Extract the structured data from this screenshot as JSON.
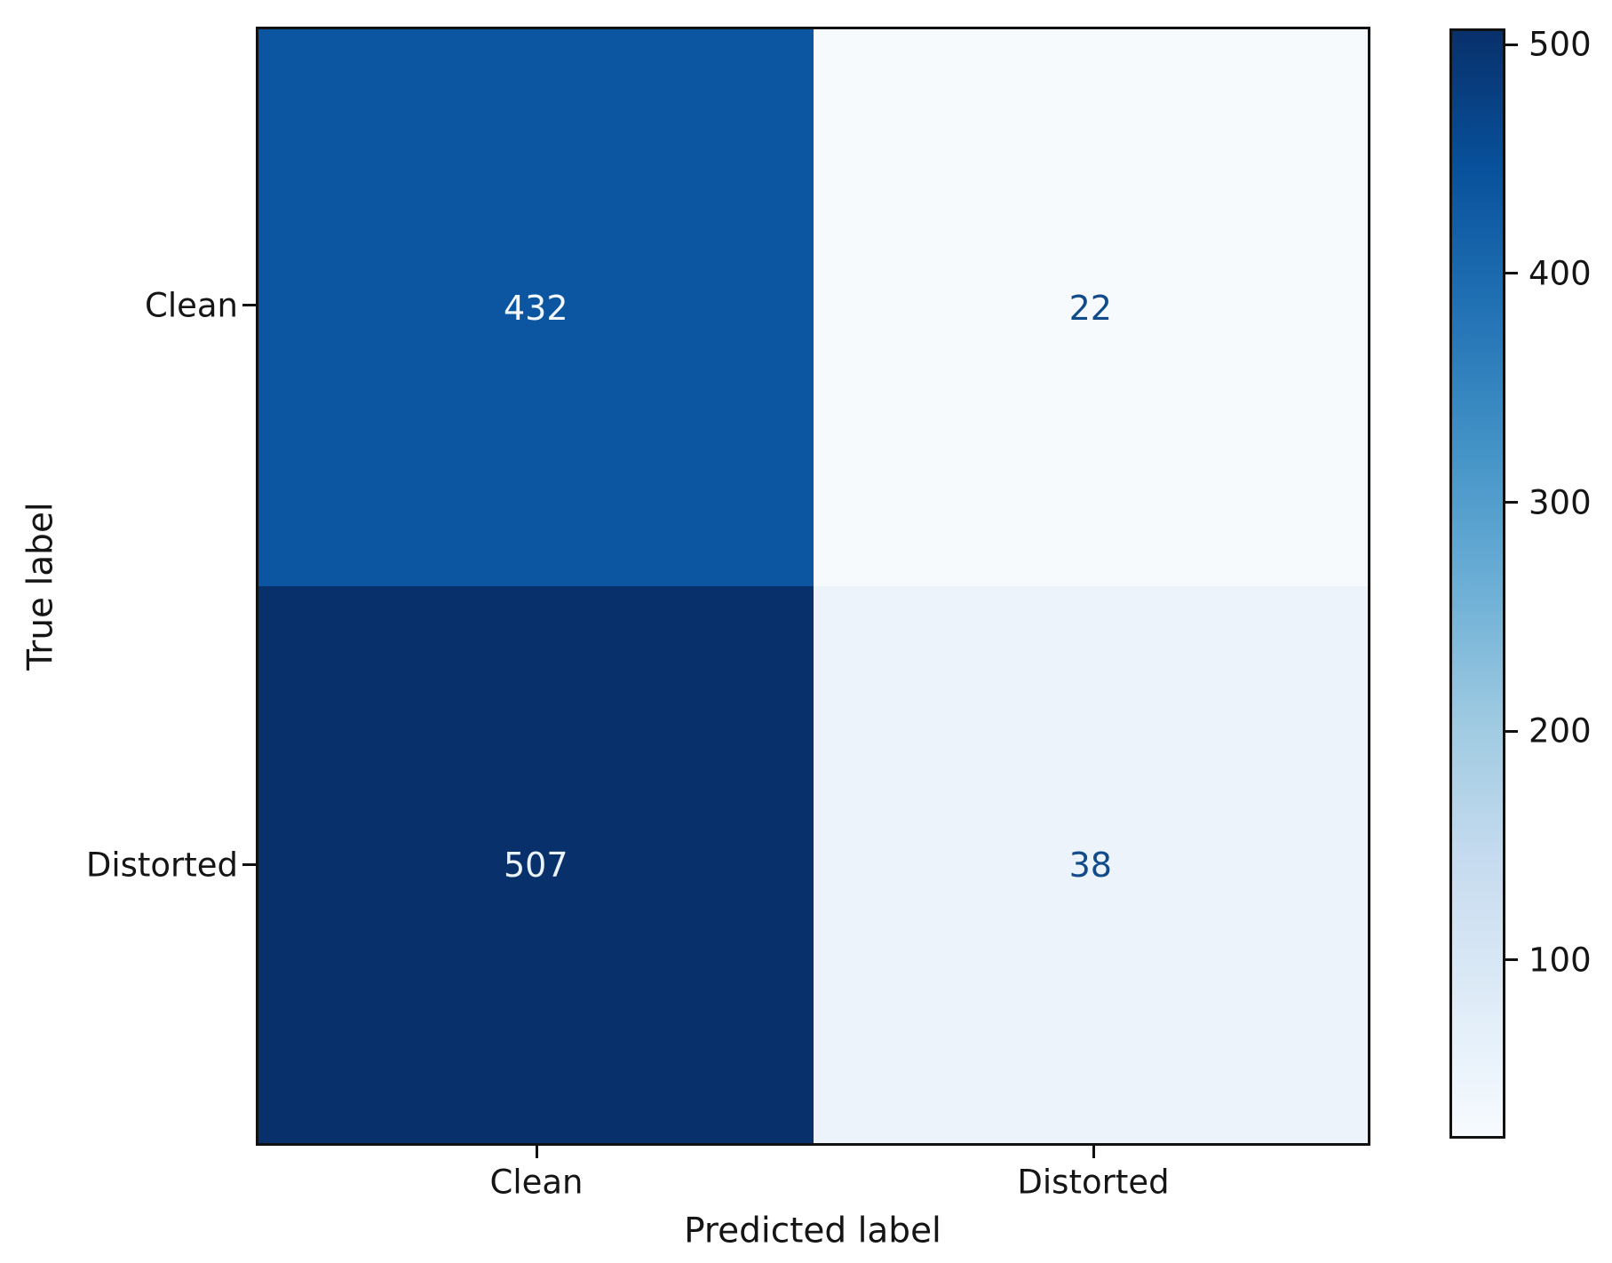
{
  "chart_data": {
    "type": "heatmap",
    "subtype": "confusion-matrix",
    "title": "",
    "xlabel": "Predicted label",
    "ylabel": "True label",
    "x_categories": [
      "Clean",
      "Distorted"
    ],
    "y_categories": [
      "Clean",
      "Distorted"
    ],
    "matrix": [
      [
        432,
        22
      ],
      [
        507,
        38
      ]
    ],
    "cells": [
      {
        "true_label": "Clean",
        "predicted_label": "Clean",
        "value": "432",
        "bg": "#0b55a1",
        "fg": "#f2f8fd"
      },
      {
        "true_label": "Clean",
        "predicted_label": "Distorted",
        "value": "22",
        "bg": "#f6fafd",
        "fg": "#124b89"
      },
      {
        "true_label": "Distorted",
        "predicted_label": "Clean",
        "value": "507",
        "bg": "#08306b",
        "fg": "#eaf2fa"
      },
      {
        "true_label": "Distorted",
        "predicted_label": "Distorted",
        "value": "38",
        "bg": "#ecf3fa",
        "fg": "#124b89"
      }
    ],
    "colorbar": {
      "vmin": 22,
      "vmax": 507,
      "ticks": [
        "500",
        "400",
        "300",
        "200",
        "100"
      ],
      "tick_values": [
        500,
        400,
        300,
        200,
        100
      ],
      "colormap": "Blues",
      "gradient_stops": [
        "#08306b",
        "#08519c",
        "#2171b5",
        "#4292c6",
        "#6baed6",
        "#9ecae1",
        "#c6dbef",
        "#deebf7",
        "#f7fbff"
      ]
    },
    "grid": false,
    "legend_position": "none",
    "spine_color": "#111111",
    "background_color": "#ffffff"
  }
}
